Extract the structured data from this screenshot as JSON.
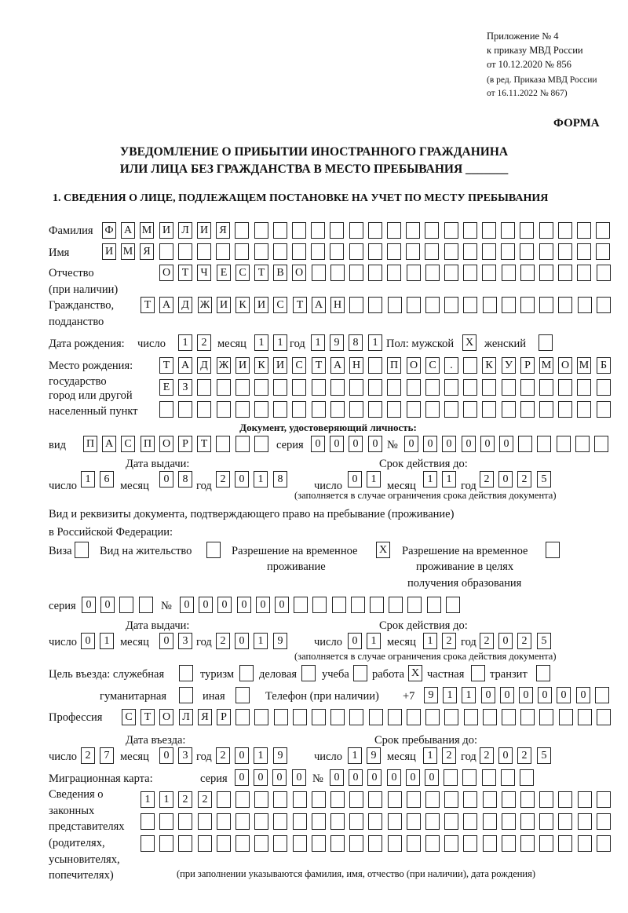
{
  "header": {
    "line1": "Приложение № 4",
    "line2": "к приказу МВД России",
    "line3": "от 10.12.2020 № 856",
    "line4": "(в ред. Приказа МВД России",
    "line5": "от 16.11.2022 № 867)",
    "forma": "ФОРМА"
  },
  "title": {
    "line1": "УВЕДОМЛЕНИЕ О ПРИБЫТИИ ИНОСТРАННОГО ГРАЖДАНИНА",
    "line2": "ИЛИ ЛИЦА БЕЗ ГРАЖДАНСТВА В МЕСТО ПРЕБЫВАНИЯ _______"
  },
  "section1": {
    "heading": "1. СВЕДЕНИЯ О ЛИЦЕ, ПОДЛЕЖАЩЕМ ПОСТАНОВКЕ НА УЧЕТ ПО МЕСТУ ПРЕБЫВАНИЯ",
    "labels": {
      "surname": "Фамилия",
      "name": "Имя",
      "patronymic": "Отчество",
      "patronymic_note": "(при наличии)",
      "citizenship1": "Гражданство,",
      "citizenship2": "подданство",
      "dob": "Дата рождения:",
      "day": "число",
      "month": "месяц",
      "year": "год",
      "sex": "Пол: мужской",
      "female": "женский",
      "pob1": "Место рождения:",
      "pob2": "государство",
      "pob3": "город или другой",
      "pob4": "населенный пункт",
      "id_doc": "Документ, удостоверяющий личность:",
      "kind": "вид",
      "series": "серия",
      "number": "№",
      "issue_date": "Дата выдачи:",
      "valid_until": "Срок действия до:",
      "valid_note": "(заполняется в случае ограничения срока действия документа)",
      "right_doc1": "Вид и реквизиты документа, подтверждающего право на пребывание (проживание)",
      "right_doc2": "в Российской Федерации:",
      "visa": "Виза",
      "residence": "Вид на жительство",
      "trp1": "Разрешение на временное",
      "trp2": "проживание",
      "trpe1": "Разрешение на временное",
      "trpe2": "проживание в целях",
      "trpe3": "получения образования",
      "purpose": "Цель въезда: служебная",
      "tourism": "туризм",
      "business": "деловая",
      "study": "учеба",
      "work": "работа",
      "private": "частная",
      "transit": "транзит",
      "humanitarian": "гуманитарная",
      "other": "иная",
      "phone": "Телефон (при наличии)",
      "phone_prefix": "+7",
      "profession": "Профессия",
      "entry_date": "Дата въезда:",
      "stay_until": "Срок пребывания до:",
      "migration_card": "Миграционная карта:",
      "reps1": "Сведения о",
      "reps2": "законных",
      "reps3": "представителях",
      "reps4": "(родителях,",
      "reps5": "усыновителях,",
      "reps6": "попечителях)",
      "reps_note": "(при заполнении указываются фамилия, имя, отчество (при наличии), дата рождения)"
    },
    "values": {
      "surname": "ФАМИЛИЯ",
      "name": "ИМЯ",
      "patronymic": "ОТЧЕСТВО",
      "citizenship": "ТАДЖИКИСТАН",
      "dob_day": "12",
      "dob_month": "11",
      "dob_year": "1981",
      "sex_male": "X",
      "sex_female": "",
      "pob_row1": "ТАДЖИКИСТАН ПОС. КУРМОМБ",
      "pob_row2": "ЕЗ",
      "pob_row3": "",
      "id_kind": "ПАСПОРТ",
      "id_series": "0000",
      "id_number": "000000",
      "id_issue_day": "16",
      "id_issue_month": "08",
      "id_issue_year": "2018",
      "id_valid_day": "01",
      "id_valid_month": "11",
      "id_valid_year": "2025",
      "visa": "",
      "residence": "",
      "trp": "X",
      "trp_edu": "",
      "rd_series": "00",
      "rd_number": "000000",
      "rd_issue_day": "01",
      "rd_issue_month": "03",
      "rd_issue_year": "2019",
      "rd_valid_day": "01",
      "rd_valid_month": "12",
      "rd_valid_year": "2025",
      "p_service": "",
      "p_tourism": "",
      "p_business": "",
      "p_study": "",
      "p_work": "X",
      "p_private": "",
      "p_transit": "",
      "p_humanitarian": "",
      "p_other": "",
      "phone": "911000000",
      "profession": "СТОЛЯР",
      "entry_day": "27",
      "entry_month": "03",
      "entry_year": "2019",
      "stay_day": "19",
      "stay_month": "12",
      "stay_year": "2025",
      "mc_series": "0000",
      "mc_number": "000000",
      "reps_row1": "1122",
      "reps_row2": "",
      "reps_row3": ""
    }
  }
}
